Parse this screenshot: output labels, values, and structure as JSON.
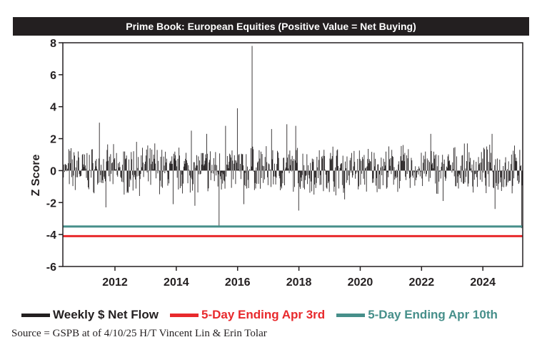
{
  "chart_data": {
    "type": "bar",
    "title": "Prime Book: European Equities (Positive Value = Net Buying)",
    "ylabel": "Z Score",
    "xlabel": "",
    "ylim": [
      -6,
      8
    ],
    "xlim": [
      2010.3,
      2025.3
    ],
    "yticks": [
      -6,
      -4,
      -2,
      0,
      2,
      4,
      6,
      8
    ],
    "xticks": [
      2012,
      2014,
      2016,
      2018,
      2020,
      2022,
      2024
    ],
    "grid": false,
    "legend_position": "bottom",
    "series": [
      {
        "name": "Weekly $ Net Flow",
        "color": "#231f20",
        "points": [
          [
            2010.8,
            1.2
          ],
          [
            2011.5,
            3.0
          ],
          [
            2011.7,
            -2.3
          ],
          [
            2012.3,
            -1.5
          ],
          [
            2012.7,
            1.8
          ],
          [
            2013.3,
            1.7
          ],
          [
            2013.9,
            -2.1
          ],
          [
            2014.5,
            2.5
          ],
          [
            2014.6,
            -2.2
          ],
          [
            2015.0,
            2.3
          ],
          [
            2015.4,
            -3.5
          ],
          [
            2015.6,
            2.8
          ],
          [
            2016.0,
            3.9
          ],
          [
            2016.2,
            -2.1
          ],
          [
            2016.47,
            7.8
          ],
          [
            2016.5,
            1.5
          ],
          [
            2017.1,
            2.6
          ],
          [
            2017.6,
            2.9
          ],
          [
            2017.9,
            2.8
          ],
          [
            2018.0,
            -2.5
          ],
          [
            2018.5,
            -1.5
          ],
          [
            2019.1,
            1.5
          ],
          [
            2019.5,
            -1.8
          ],
          [
            2021.4,
            1.6
          ],
          [
            2022.3,
            2.3
          ],
          [
            2022.7,
            -1.9
          ],
          [
            2023.5,
            1.7
          ],
          [
            2024.3,
            2.3
          ],
          [
            2024.4,
            -2.4
          ],
          [
            2025.2,
            1.3
          ],
          [
            2025.27,
            -3.6
          ]
        ]
      },
      {
        "name": "5-Day Ending Apr 3rd",
        "color": "#e8292c",
        "value": -4.1
      },
      {
        "name": "5-Day Ending Apr 10th",
        "color": "#468f8a",
        "value": -3.5
      }
    ],
    "source": "Source = GSPB at of 4/10/25 H/T Vincent Lin & Erin Tolar"
  }
}
